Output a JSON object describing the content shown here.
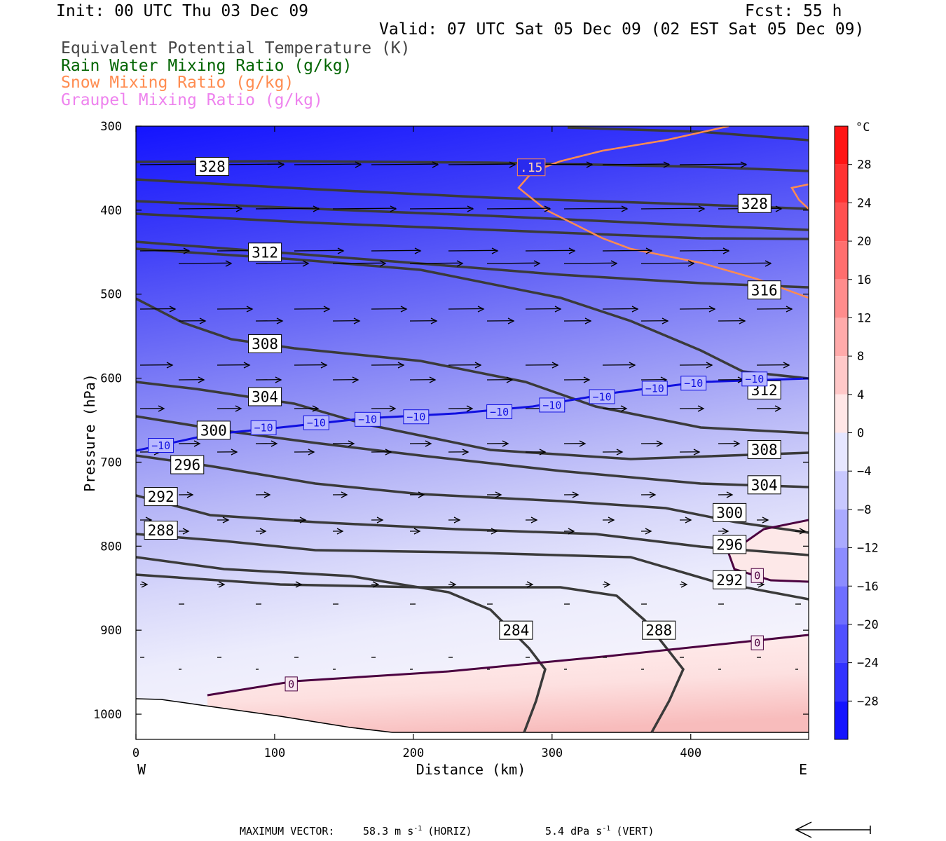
{
  "header": {
    "init": "Init: 00 UTC Thu 03 Dec 09",
    "fcst": "Fcst:   55 h",
    "valid": "Valid: 07 UTC Sat 05 Dec 09 (02 EST Sat 05 Dec 09)"
  },
  "legend": [
    {
      "label": "Equivalent Potential Temperature (K)",
      "color": "#444444"
    },
    {
      "label": "Rain Water Mixing Ratio (g/kg)",
      "color": "#006400"
    },
    {
      "label": "Snow Mixing Ratio (g/kg)",
      "color": "#ff8c50"
    },
    {
      "label": "Graupel Mixing Ratio (g/kg)",
      "color": "#ee82ee"
    }
  ],
  "colors": {
    "theta_e": "#3a3a3a",
    "isotherm_neg10": "#1010e0",
    "isotherm_0": "#4b0040",
    "snow": "#ff8c50",
    "axis": "#000000"
  },
  "chart_data": {
    "type": "contour",
    "xlabel": "Distance (km)",
    "ylabel": "Pressure (hPa)",
    "xlim": [
      0,
      485
    ],
    "ylim": [
      1030,
      300
    ],
    "x_ticks": [
      0,
      100,
      200,
      300,
      400
    ],
    "y_ticks": [
      300,
      400,
      500,
      600,
      700,
      800,
      900,
      1000
    ],
    "x_end_labels": {
      "left": "W",
      "right": "E"
    },
    "colorbar": {
      "unit": "°C",
      "ticks": [
        "28",
        "24",
        "20",
        "16",
        "12",
        "8",
        "4",
        "0",
        "−4",
        "−8",
        "−12",
        "−16",
        "−20",
        "−24",
        "−28"
      ],
      "range": [
        -32,
        32
      ]
    },
    "theta_e_labels": [
      {
        "text": "328",
        "x": 55,
        "p": 348
      },
      {
        "text": "328",
        "x": 446,
        "p": 392
      },
      {
        "text": "312",
        "x": 93,
        "p": 450
      },
      {
        "text": "316",
        "x": 453,
        "p": 495
      },
      {
        "text": "308",
        "x": 93,
        "p": 559
      },
      {
        "text": "312",
        "x": 453,
        "p": 614
      },
      {
        "text": "304",
        "x": 93,
        "p": 622
      },
      {
        "text": "308",
        "x": 453,
        "p": 685
      },
      {
        "text": "300",
        "x": 56,
        "p": 662
      },
      {
        "text": "296",
        "x": 37,
        "p": 703
      },
      {
        "text": "304",
        "x": 453,
        "p": 727
      },
      {
        "text": "292",
        "x": 18,
        "p": 741
      },
      {
        "text": "300",
        "x": 428,
        "p": 760
      },
      {
        "text": "288",
        "x": 18,
        "p": 781
      },
      {
        "text": "296",
        "x": 428,
        "p": 798
      },
      {
        "text": "292",
        "x": 428,
        "p": 840
      },
      {
        "text": "284",
        "x": 274,
        "p": 900
      },
      {
        "text": "288",
        "x": 377,
        "p": 900
      }
    ],
    "isotherm_labels": [
      {
        "text": "−10",
        "x": 18,
        "p": 680
      },
      {
        "text": "−10",
        "x": 92,
        "p": 659
      },
      {
        "text": "−10",
        "x": 130,
        "p": 653
      },
      {
        "text": "−10",
        "x": 167,
        "p": 649
      },
      {
        "text": "−10",
        "x": 202,
        "p": 646
      },
      {
        "text": "−10",
        "x": 262,
        "p": 640
      },
      {
        "text": "−10",
        "x": 300,
        "p": 632
      },
      {
        "text": "−10",
        "x": 336,
        "p": 622
      },
      {
        "text": "−10",
        "x": 374,
        "p": 612
      },
      {
        "text": "−10",
        "x": 402,
        "p": 606
      },
      {
        "text": "−10",
        "x": 446,
        "p": 601
      },
      {
        "text": "0",
        "x": 448,
        "p": 835
      },
      {
        "text": "0",
        "x": 448,
        "p": 915
      },
      {
        "text": "0",
        "x": 112,
        "p": 964
      }
    ],
    "snow_labels": [
      {
        "text": ".15",
        "x": 285,
        "p": 349
      }
    ],
    "footer": {
      "title": "MAXIMUM VECTOR:",
      "horiz": "58.3 m s",
      "horiz_exp": "-1",
      "horiz_tag": "(HORIZ)",
      "vert": "5.4 dPa s",
      "vert_exp": "-1",
      "vert_tag": "(VERT)"
    }
  }
}
